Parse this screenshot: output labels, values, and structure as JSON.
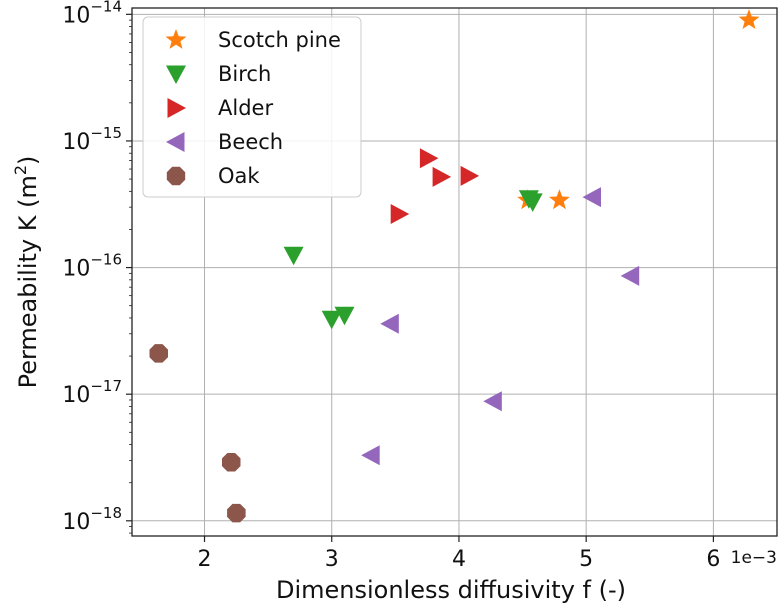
{
  "chart_data": {
    "type": "scatter",
    "xlabel": "Dimensionless diffusivity f (-)",
    "ylabel": "Permeability K (m²)",
    "x_offset_label": "1e−3",
    "x_scale_factor": 0.001,
    "y_scale": "log",
    "xlim": [
      0.00143,
      0.0065
    ],
    "ylim_exponents": [
      -18.12,
      -13.95
    ],
    "x_ticks": [
      {
        "value": 0.002,
        "label": "2"
      },
      {
        "value": 0.003,
        "label": "3"
      },
      {
        "value": 0.004,
        "label": "4"
      },
      {
        "value": 0.005,
        "label": "5"
      },
      {
        "value": 0.006,
        "label": "6"
      }
    ],
    "y_ticks": [
      {
        "exponent": -18,
        "base": "10",
        "sup": "−18"
      },
      {
        "exponent": -17,
        "base": "10",
        "sup": "−17"
      },
      {
        "exponent": -16,
        "base": "10",
        "sup": "−16"
      },
      {
        "exponent": -15,
        "base": "10",
        "sup": "−15"
      },
      {
        "exponent": -14,
        "base": "10",
        "sup": "−14"
      }
    ],
    "grid": true,
    "legend_position": "top-left",
    "series": [
      {
        "name": "Scotch pine",
        "marker": "star",
        "color": "#ff7f0e",
        "points": [
          {
            "x": 0.00628,
            "y": 9e-15
          },
          {
            "x": 0.00479,
            "y": 3.4e-16
          },
          {
            "x": 0.00454,
            "y": 3.4e-16
          }
        ]
      },
      {
        "name": "Birch",
        "marker": "triangle-down",
        "color": "#2ca02c",
        "points": [
          {
            "x": 0.0027,
            "y": 1.25e-16
          },
          {
            "x": 0.003,
            "y": 3.9e-17
          },
          {
            "x": 0.0031,
            "y": 4.2e-17
          },
          {
            "x": 0.00455,
            "y": 3.5e-16
          },
          {
            "x": 0.00458,
            "y": 3.3e-16
          }
        ]
      },
      {
        "name": "Alder",
        "marker": "triangle-right",
        "color": "#d62728",
        "points": [
          {
            "x": 0.00353,
            "y": 2.65e-16
          },
          {
            "x": 0.00376,
            "y": 7.3e-16
          },
          {
            "x": 0.00386,
            "y": 5.2e-16
          },
          {
            "x": 0.00408,
            "y": 5.3e-16
          }
        ]
      },
      {
        "name": "Beech",
        "marker": "triangle-left",
        "color": "#9467bd",
        "points": [
          {
            "x": 0.00331,
            "y": 3.3e-18
          },
          {
            "x": 0.00346,
            "y": 3.6e-17
          },
          {
            "x": 0.00427,
            "y": 8.8e-18
          },
          {
            "x": 0.00505,
            "y": 3.6e-16
          },
          {
            "x": 0.00535,
            "y": 8.6e-17
          }
        ]
      },
      {
        "name": "Oak",
        "marker": "octagon",
        "color": "#8c564b",
        "points": [
          {
            "x": 0.00164,
            "y": 2.1e-17
          },
          {
            "x": 0.00221,
            "y": 2.9e-18
          },
          {
            "x": 0.00225,
            "y": 1.15e-18
          }
        ]
      }
    ]
  }
}
